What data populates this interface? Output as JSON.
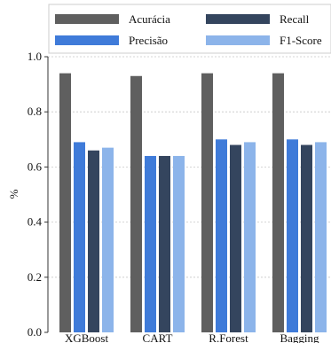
{
  "chart_data": {
    "type": "bar",
    "categories": [
      "XGBoost",
      "CART",
      "R.Forest",
      "Bagging"
    ],
    "series": [
      {
        "name": "Acurácia",
        "values": [
          0.94,
          0.93,
          0.94,
          0.94
        ],
        "color": "#5f5f5f"
      },
      {
        "name": "Precisão",
        "values": [
          0.69,
          0.64,
          0.7,
          0.7
        ],
        "color": "#3f7bd9"
      },
      {
        "name": "Recall",
        "values": [
          0.66,
          0.64,
          0.68,
          0.68
        ],
        "color": "#34455e"
      },
      {
        "name": "F1-Score",
        "values": [
          0.67,
          0.64,
          0.69,
          0.69
        ],
        "color": "#8cb4ea"
      }
    ],
    "ylabel": "%",
    "ylim": [
      0,
      1.0
    ],
    "yticks": [
      "0.0",
      "0.2",
      "0.4",
      "0.6",
      "0.8",
      "1.0"
    ],
    "grid": true,
    "legend_position": "top"
  }
}
